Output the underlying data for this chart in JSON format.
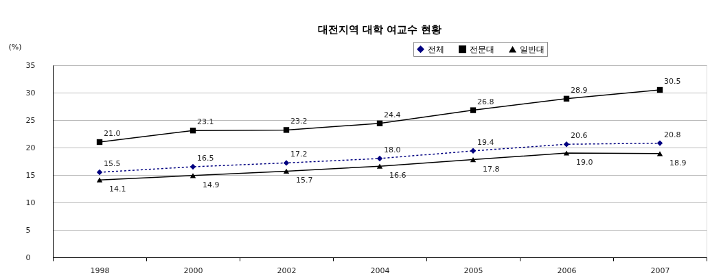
{
  "chart_data": {
    "type": "line",
    "title": "대전지역 대학 여교수 현황",
    "ylabel": "(%)",
    "categories": [
      "1998",
      "2000",
      "2002",
      "2004",
      "2005",
      "2006",
      "2007"
    ],
    "series": [
      {
        "name": "전체",
        "color": "#000080",
        "marker": "diamond",
        "line_style": "dotted",
        "values": [
          15.5,
          16.5,
          17.2,
          18.0,
          19.4,
          20.6,
          20.8
        ],
        "value_labels": [
          "15.5",
          "16.5",
          "17.2",
          "18.0",
          "19.4",
          "20.6",
          "20.8"
        ]
      },
      {
        "name": "전문대",
        "color": "#000000",
        "marker": "square",
        "line_style": "solid",
        "values": [
          21.0,
          23.1,
          23.2,
          24.4,
          26.8,
          28.9,
          30.5
        ],
        "value_labels": [
          "21.0",
          "23.1",
          "23.2",
          "24.4",
          "26.8",
          "28.9",
          "30.5"
        ]
      },
      {
        "name": "일반대",
        "color": "#000000",
        "marker": "triangle",
        "line_style": "solid",
        "values": [
          14.1,
          14.9,
          15.7,
          16.6,
          17.8,
          19.0,
          18.9
        ],
        "value_labels": [
          "14.1",
          "14.9",
          "15.7",
          "16.6",
          "17.8",
          "19.0",
          "18.9"
        ]
      }
    ],
    "ylim": [
      0,
      35
    ],
    "yticks": [
      0,
      5,
      10,
      15,
      20,
      25,
      30,
      35
    ],
    "grid": "y",
    "legend": "top right"
  }
}
